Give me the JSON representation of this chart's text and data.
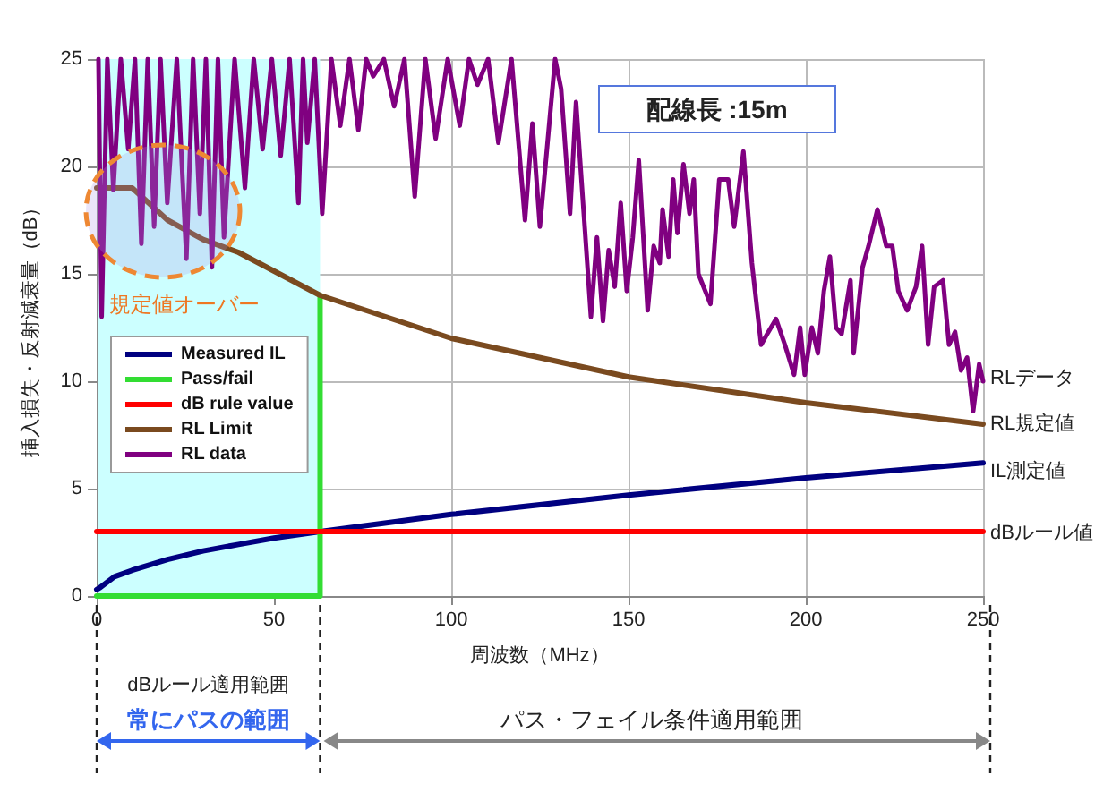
{
  "chart_data": {
    "type": "line",
    "xlabel": "周波数（MHz）",
    "ylabel": "挿入損失・反射減衰量（dB）",
    "xlim": [
      0,
      250
    ],
    "xticks": [
      0,
      50,
      100,
      150,
      200,
      250
    ],
    "ylim": [
      0,
      25
    ],
    "yticks": [
      0,
      5,
      10,
      15,
      20,
      25
    ],
    "grid": true,
    "legend": "left",
    "marker": "none",
    "line_style": "solid",
    "bands": [
      {
        "axis": "x",
        "from": 0,
        "to": 63,
        "color": "#ccffff"
      }
    ],
    "series": [
      {
        "name": "Measured IL",
        "color": "#000080",
        "x": [
          0,
          1,
          5,
          10,
          20,
          30,
          40,
          50,
          63,
          100,
          150,
          200,
          250
        ],
        "values": [
          0.3,
          0.4,
          0.9,
          1.2,
          1.7,
          2.1,
          2.4,
          2.7,
          3.0,
          3.8,
          4.7,
          5.5,
          6.2
        ]
      },
      {
        "name": "Pass/fail",
        "color": "#33dd33",
        "x": [
          0,
          63,
          63
        ],
        "values": [
          0,
          0,
          14
        ]
      },
      {
        "name": "dB rule value",
        "color": "#ff0000",
        "x": [
          0,
          250
        ],
        "values": [
          3,
          3
        ]
      },
      {
        "name": "RL Limit",
        "color": "#7a4a1f",
        "x": [
          0,
          10,
          20,
          30,
          40,
          63,
          100,
          150,
          200,
          250
        ],
        "values": [
          19,
          19,
          17.5,
          16.6,
          16,
          14,
          12,
          10.2,
          9,
          8
        ]
      },
      {
        "name": "RL data",
        "color": "#800080",
        "x": [
          0.5,
          1.4,
          3,
          4.7,
          6.8,
          8.9,
          10.8,
          12.6,
          14.4,
          16.2,
          18,
          19.9,
          22.6,
          25.3,
          27.2,
          29.1,
          30.8,
          32.5,
          34.2,
          35.9,
          38.9,
          41.8,
          44.3,
          46.8,
          49.4,
          51.9,
          54.4,
          56.9,
          58.2,
          59.4,
          61.5,
          63.6,
          66.2,
          68.7,
          71.3,
          73.8,
          76,
          78,
          81,
          83.9,
          86.8,
          89.7,
          92.7,
          95.6,
          99,
          102.4,
          105,
          107.4,
          110.4,
          113.3,
          117,
          120.8,
          122.9,
          125,
          129.3,
          131,
          133.5,
          135.2,
          139.4,
          141.1,
          142.8,
          144.4,
          146.1,
          147.8,
          149.5,
          151.2,
          152.9,
          155.4,
          157.1,
          158.8,
          159.6,
          161.3,
          162.6,
          163.8,
          165.5,
          167.2,
          168.4,
          169.7,
          173.1,
          175.6,
          178.1,
          179.8,
          182.4,
          184.8,
          187.4,
          189.1,
          191.6,
          194.1,
          196.7,
          198.4,
          199.7,
          201.7,
          203.4,
          205.1,
          206.8,
          208.5,
          210.1,
          212.6,
          213.5,
          216,
          217.7,
          220.2,
          222.7,
          224.4,
          226.1,
          228.6,
          231.1,
          232.8,
          234.5,
          236.2,
          238.7,
          240.4,
          242.1,
          243.8,
          245.5,
          247.2,
          248.9,
          250
        ],
        "values": [
          25,
          13,
          25,
          18.9,
          25,
          20.8,
          25,
          16.4,
          25,
          17.2,
          25,
          18.3,
          25,
          15.7,
          25,
          17.8,
          25,
          15.3,
          25,
          16.7,
          25,
          19,
          25,
          20.8,
          25,
          20.5,
          25,
          18.3,
          25,
          21.1,
          25,
          17.8,
          25,
          21.9,
          25,
          21.7,
          25,
          24.2,
          25,
          22.8,
          25,
          18.6,
          25,
          21.3,
          25,
          21.9,
          25,
          23.8,
          25,
          21.1,
          25,
          17.5,
          22,
          17.2,
          25,
          23.6,
          17.8,
          23,
          13,
          16.7,
          12.8,
          16.1,
          14.4,
          18.3,
          14.2,
          16.7,
          20.3,
          13.3,
          16.3,
          15.5,
          18,
          15.8,
          19.4,
          16.9,
          20.1,
          17.8,
          19.4,
          15,
          13.6,
          19.4,
          19.4,
          17.2,
          20.7,
          15.5,
          11.7,
          12.2,
          12.9,
          11.7,
          10.3,
          12.5,
          10.3,
          12.5,
          11.3,
          14.2,
          15.8,
          12.5,
          12.2,
          14.7,
          11.3,
          15.3,
          16.3,
          18,
          16.3,
          16.3,
          14.2,
          13.3,
          14.4,
          16.3,
          11.7,
          14.4,
          14.7,
          11.7,
          12.3,
          10.5,
          11.1,
          8.6,
          10.8,
          10
        ]
      }
    ],
    "annotations": [
      "配線長 :15m",
      "dBルール適用範囲",
      "常にパスの範囲",
      "パス・フェイル条件適用範囲",
      "規定値オーバー",
      "RLデータ",
      "RL規定値",
      "IL測定値",
      "dBルール値"
    ]
  }
}
